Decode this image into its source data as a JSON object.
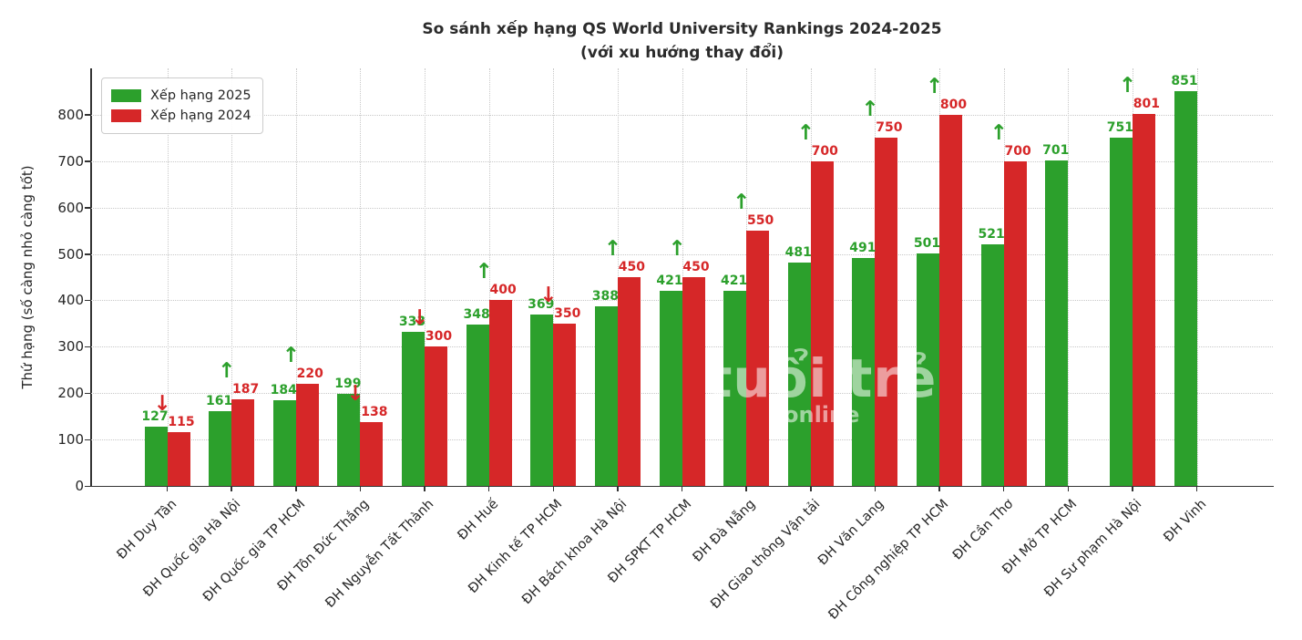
{
  "chart_data": {
    "type": "bar",
    "title": "So sánh xếp hạng QS World University Rankings 2024-2025",
    "subtitle": "(với xu hướng thay đổi)",
    "ylabel": "Thứ hạng (số càng nhỏ càng tốt)",
    "xlabel": "",
    "ylim": [
      0,
      900
    ],
    "yticks": [
      0,
      100,
      200,
      300,
      400,
      500,
      600,
      700,
      800
    ],
    "grid": true,
    "grid_style": "dotted",
    "legend_position": "upper left",
    "categories": [
      "ĐH Duy Tân",
      "ĐH Quốc gia Hà Nội",
      "ĐH Quốc gia TP HCM",
      "ĐH Tôn Đức Thắng",
      "ĐH Nguyễn Tất Thành",
      "ĐH Huế",
      "ĐH Kinh tế TP HCM",
      "ĐH Bách khoa Hà Nội",
      "ĐH SPKT TP HCM",
      "ĐH Đà Nẵng",
      "ĐH Giao thông Vận tải",
      "ĐH Văn Lang",
      "ĐH Công nghiệp TP HCM",
      "ĐH Cần Thơ",
      "ĐH Mở TP HCM",
      "ĐH Sư phạm Hà Nội",
      "ĐH Vinh"
    ],
    "series": [
      {
        "name": "Xếp hạng 2025",
        "color": "#2ca02c",
        "values": [
          127,
          161,
          184,
          199,
          333,
          348,
          369,
          388,
          421,
          421,
          481,
          491,
          501,
          521,
          701,
          751,
          851
        ]
      },
      {
        "name": "Xếp hạng 2024",
        "color": "#d62728",
        "values": [
          115,
          187,
          220,
          138,
          300,
          400,
          350,
          450,
          450,
          550,
          700,
          750,
          800,
          700,
          null,
          801,
          null
        ]
      }
    ],
    "trend": [
      "down",
      "up",
      "up",
      "down",
      "down",
      "up",
      "down",
      "up",
      "up",
      "up",
      "up",
      "up",
      "up",
      "up",
      null,
      "up",
      null
    ],
    "trend_icons": {
      "up": "↑",
      "down": "↓"
    },
    "trend_colors": {
      "up": "#2ca02c",
      "down": "#d62728"
    }
  },
  "watermark": {
    "main": "tuổi trẻ",
    "sub": "online"
  },
  "colors": {
    "spine": "#333333",
    "grid": "#c8c8c8",
    "text": "#262626",
    "background": "#ffffff"
  }
}
